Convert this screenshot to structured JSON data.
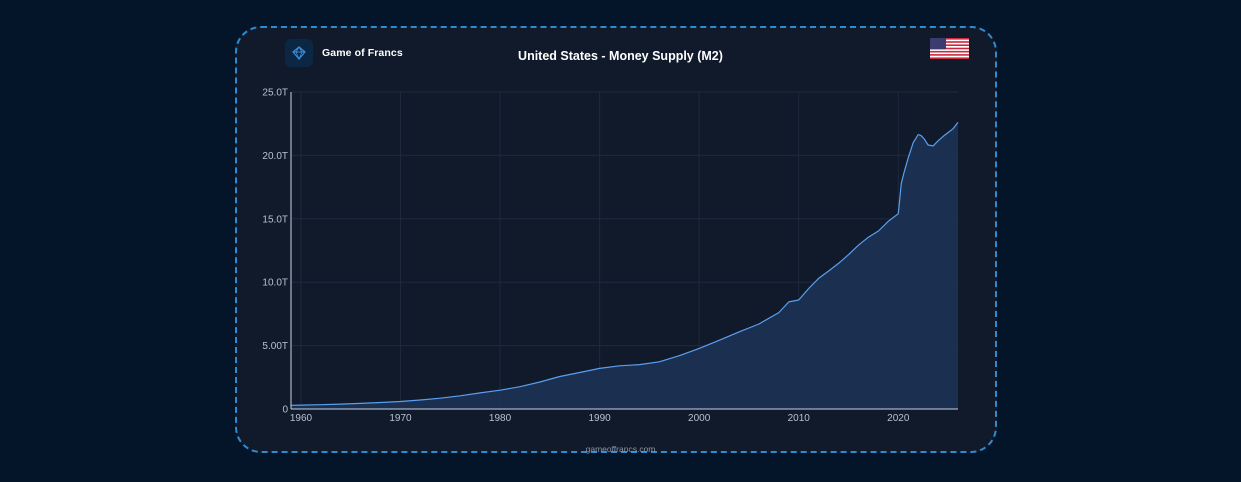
{
  "header": {
    "brand_name": "Game of Francs",
    "logo_icon": "game-of-francs-logo-icon",
    "flag_icon": "us-flag-icon"
  },
  "footer": {
    "site": "gameoffrancs.com"
  },
  "colors": {
    "page_background": "#04152a",
    "card_background": "#101a2a",
    "card_border": "#2f8bd0",
    "line": "#5a9ff0",
    "area_fill": "#1c3052",
    "grid": "#1e2a3c"
  },
  "chart_data": {
    "type": "area",
    "title": "United States - Money Supply (M2)",
    "xlabel": "",
    "ylabel": "",
    "xlim": [
      1959,
      2026
    ],
    "ylim": [
      0,
      25
    ],
    "x_ticks": [
      1960,
      1970,
      1980,
      1990,
      2000,
      2010,
      2020
    ],
    "x_tick_labels": [
      "1960",
      "1970",
      "1980",
      "1990",
      "2000",
      "2010",
      "2020"
    ],
    "y_ticks": [
      0,
      5,
      10,
      15,
      20,
      25
    ],
    "y_tick_labels": [
      "0",
      "5.00T",
      "10.0T",
      "15.0T",
      "20.0T",
      "25.0T"
    ],
    "grid": true,
    "legend": "none",
    "series": [
      {
        "x": [
          1959,
          1960,
          1962,
          1964,
          1966,
          1968,
          1970,
          1972,
          1974,
          1976,
          1978,
          1980,
          1982,
          1984,
          1986,
          1988,
          1990,
          1992,
          1994,
          1996,
          1998,
          2000,
          2002,
          2004,
          2006,
          2008,
          2009,
          2010,
          2011,
          2012,
          2013,
          2014,
          2015,
          2016,
          2017,
          2018,
          2019,
          2020.0,
          2020.3,
          2020.6,
          2021,
          2021.5,
          2022,
          2022.3,
          2022.6,
          2023,
          2023.5,
          2024,
          2024.5,
          2025,
          2025.5,
          2026
        ],
        "y": [
          0.29,
          0.31,
          0.34,
          0.39,
          0.44,
          0.51,
          0.59,
          0.71,
          0.85,
          1.04,
          1.27,
          1.48,
          1.76,
          2.13,
          2.56,
          2.88,
          3.2,
          3.41,
          3.5,
          3.72,
          4.2,
          4.78,
          5.42,
          6.08,
          6.7,
          7.6,
          8.45,
          8.6,
          9.5,
          10.3,
          10.88,
          11.48,
          12.17,
          12.92,
          13.55,
          14.04,
          14.8,
          15.4,
          17.8,
          18.7,
          19.8,
          21.0,
          21.65,
          21.55,
          21.3,
          20.82,
          20.75,
          21.15,
          21.5,
          21.8,
          22.1,
          22.6
        ]
      }
    ]
  }
}
